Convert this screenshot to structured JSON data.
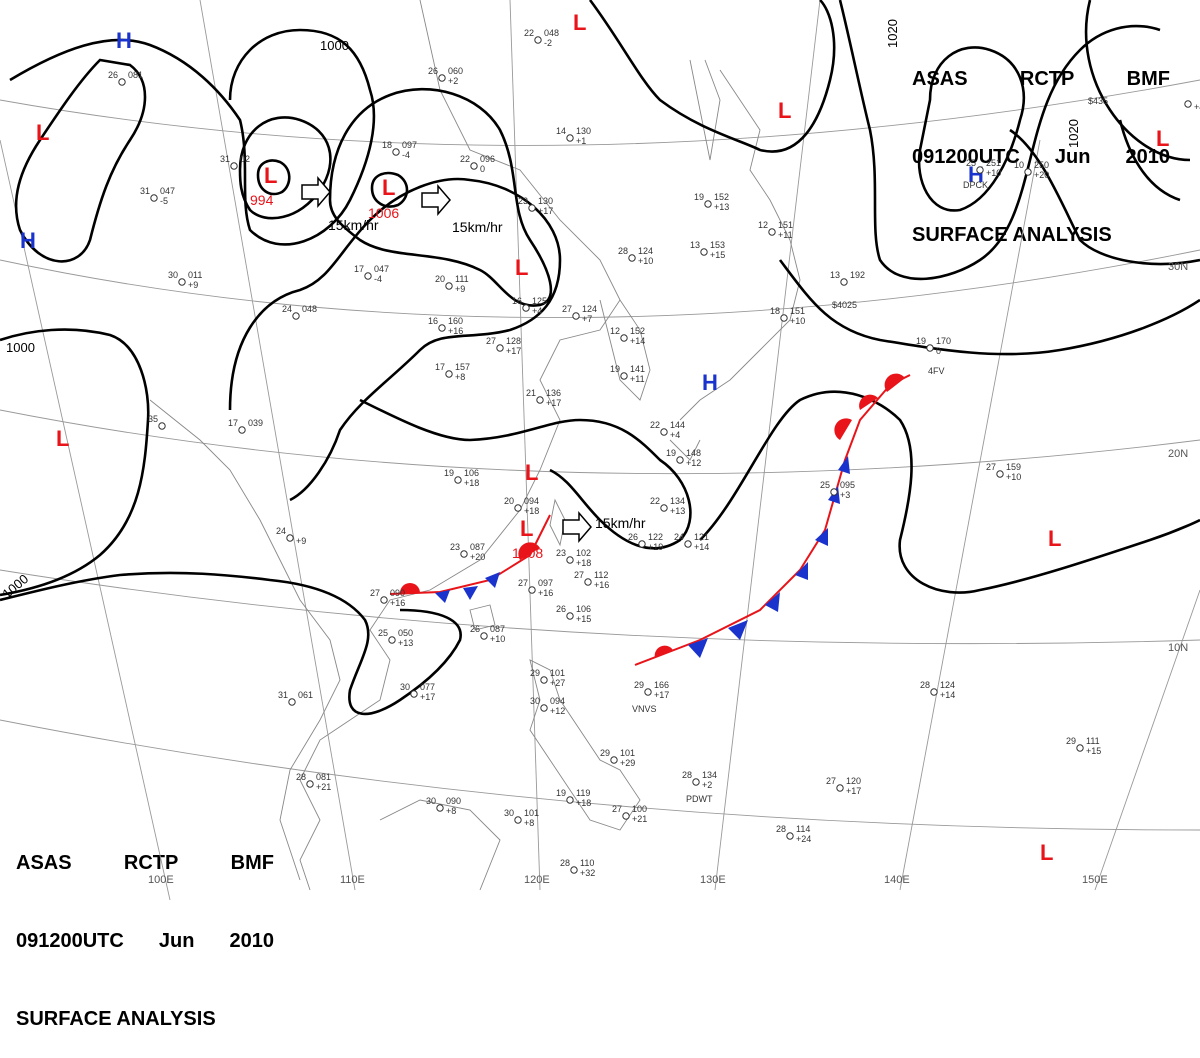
{
  "header": {
    "line1": [
      "ASAS",
      "RCTP",
      "BMF"
    ],
    "line2": [
      "091200UTC",
      "Jun",
      "2010"
    ],
    "line3": "SURFACE ANALYSIS"
  },
  "pressure_centers": [
    {
      "type": "H",
      "label": "H",
      "color": "#1a33cc"
    },
    {
      "type": "H",
      "label": "H",
      "color": "#1a33cc"
    },
    {
      "type": "H",
      "label": "H",
      "color": "#1a33cc"
    },
    {
      "type": "H",
      "label": "H",
      "color": "#1a33cc"
    },
    {
      "type": "L",
      "label": "L",
      "color": "#e8141a"
    },
    {
      "type": "L",
      "label": "L",
      "color": "#e8141a",
      "value": "994"
    },
    {
      "type": "L",
      "label": "L",
      "color": "#e8141a",
      "value": "1006"
    },
    {
      "type": "L",
      "label": "L",
      "color": "#e8141a"
    },
    {
      "type": "L",
      "label": "L",
      "color": "#e8141a"
    },
    {
      "type": "L",
      "label": "L",
      "color": "#e8141a",
      "value": "1008"
    },
    {
      "type": "L",
      "label": "L",
      "color": "#e8141a"
    },
    {
      "type": "L",
      "label": "L",
      "color": "#e8141a"
    },
    {
      "type": "L",
      "label": "L",
      "color": "#e8141a"
    },
    {
      "type": "L",
      "label": "L",
      "color": "#e8141a"
    },
    {
      "type": "L",
      "label": "L",
      "color": "#e8141a"
    },
    {
      "type": "L",
      "label": "L",
      "color": "#e8141a"
    }
  ],
  "motion_vectors": [
    "15km/hr",
    "15km/hr",
    "15km/hr"
  ],
  "isobar_labels": [
    "1000",
    "1000",
    "1000",
    "1020",
    "1020"
  ],
  "longitude_labels": [
    "110E",
    "120E",
    "130E",
    "140E",
    "150E",
    "100E"
  ],
  "latitude_labels": [
    "30N",
    "20N",
    "10N"
  ],
  "stations": [
    {
      "t": "26",
      "p": "060",
      "d": "+2"
    },
    {
      "t": "22",
      "p": "048",
      "d": "-2"
    },
    {
      "t": "26",
      "p": "081",
      "d": ""
    },
    {
      "t": "18",
      "p": "097",
      "d": "-4"
    },
    {
      "t": "22",
      "p": "096",
      "d": "0"
    },
    {
      "t": "14",
      "p": "130",
      "d": "+1"
    },
    {
      "t": "31",
      "p": "02",
      "d": ""
    },
    {
      "t": "31",
      "p": "047",
      "d": "-5"
    },
    {
      "t": "23",
      "p": "130",
      "d": "+17"
    },
    {
      "t": "19",
      "p": "152",
      "d": "+13"
    },
    {
      "t": "13",
      "p": "153",
      "d": "+15"
    },
    {
      "t": "12",
      "p": "151",
      "d": "+11"
    },
    {
      "t": "28",
      "p": "124",
      "d": "+10"
    },
    {
      "t": "17",
      "p": "047",
      "d": "-4"
    },
    {
      "t": "20",
      "p": "111",
      "d": "+9"
    },
    {
      "t": "30",
      "p": "011",
      "d": "+9"
    },
    {
      "t": "24",
      "p": "048",
      "d": ""
    },
    {
      "t": "16",
      "p": "125",
      "d": "+4"
    },
    {
      "t": "27",
      "p": "124",
      "d": "+7"
    },
    {
      "t": "16",
      "p": "160",
      "d": "+16"
    },
    {
      "t": "27",
      "p": "128",
      "d": "+17"
    },
    {
      "t": "12",
      "p": "152",
      "d": "+14"
    },
    {
      "t": "18",
      "p": "151",
      "d": "+10"
    },
    {
      "t": "13",
      "p": "192",
      "d": ""
    },
    {
      "t": "17",
      "p": "157",
      "d": "+8"
    },
    {
      "t": "19",
      "p": "141",
      "d": "+11"
    },
    {
      "t": "21",
      "p": "136",
      "d": "+17"
    },
    {
      "t": "19",
      "p": "170",
      "d": "0"
    },
    {
      "t": "17",
      "p": "039",
      "d": ""
    },
    {
      "t": "35",
      "p": "",
      "d": ""
    },
    {
      "t": "22",
      "p": "144",
      "d": "+4"
    },
    {
      "t": "19",
      "p": "148",
      "d": "+12"
    },
    {
      "t": "19",
      "p": "106",
      "d": "+18"
    },
    {
      "t": "20",
      "p": "094",
      "d": "+18"
    },
    {
      "t": "27",
      "p": "159",
      "d": "+10"
    },
    {
      "t": "25",
      "p": "095",
      "d": "+3"
    },
    {
      "t": "22",
      "p": "134",
      "d": "+13"
    },
    {
      "t": "24",
      "p": "",
      "d": "+9"
    },
    {
      "t": "23",
      "p": "087",
      "d": "+20"
    },
    {
      "t": "23",
      "p": "102",
      "d": "+18"
    },
    {
      "t": "26",
      "p": "122",
      "d": "+19"
    },
    {
      "t": "24",
      "p": "121",
      "d": "+14"
    },
    {
      "t": "27",
      "p": "112",
      "d": "+16"
    },
    {
      "t": "27",
      "p": "097",
      "d": "+16"
    },
    {
      "t": "27",
      "p": "090",
      "d": "+16"
    },
    {
      "t": "26",
      "p": "106",
      "d": "+15"
    },
    {
      "t": "25",
      "p": "050",
      "d": "+13"
    },
    {
      "t": "26",
      "p": "087",
      "d": "+10"
    },
    {
      "t": "29",
      "p": "101",
      "d": "+27"
    },
    {
      "t": "29",
      "p": "166",
      "d": "+17"
    },
    {
      "t": "30",
      "p": "077",
      "d": "+17"
    },
    {
      "t": "31",
      "p": "061",
      "d": ""
    },
    {
      "t": "30",
      "p": "094",
      "d": "+12"
    },
    {
      "t": "28",
      "p": "124",
      "d": "+14"
    },
    {
      "t": "29",
      "p": "111",
      "d": "+15"
    },
    {
      "t": "28",
      "p": "081",
      "d": "+21"
    },
    {
      "t": "27",
      "p": "120",
      "d": "+17"
    },
    {
      "t": "29",
      "p": "101",
      "d": "+29"
    },
    {
      "t": "28",
      "p": "134",
      "d": "+2"
    },
    {
      "t": "30",
      "p": "090",
      "d": "+8"
    },
    {
      "t": "19",
      "p": "119",
      "d": "+18"
    },
    {
      "t": "30",
      "p": "101",
      "d": "+8"
    },
    {
      "t": "27",
      "p": "100",
      "d": "+21"
    },
    {
      "t": "28",
      "p": "114",
      "d": "+24"
    },
    {
      "t": "28",
      "p": "110",
      "d": "+32"
    },
    {
      "t": "25",
      "p": "251",
      "d": "+10"
    },
    {
      "t": "10",
      "p": "250",
      "d": "+20"
    },
    {
      "t": "",
      "p": "",
      "d": "+4"
    }
  ],
  "station_ids": [
    "DPCK",
    "$4025",
    "$435",
    "VNVS",
    "PDWT",
    "4FV"
  ],
  "colors": {
    "low": "#e8141a",
    "high": "#1a33cc",
    "warm_front": "#e8141a",
    "cold_front": "#1a33cc",
    "isobar": "#000000",
    "coast": "#888888"
  }
}
